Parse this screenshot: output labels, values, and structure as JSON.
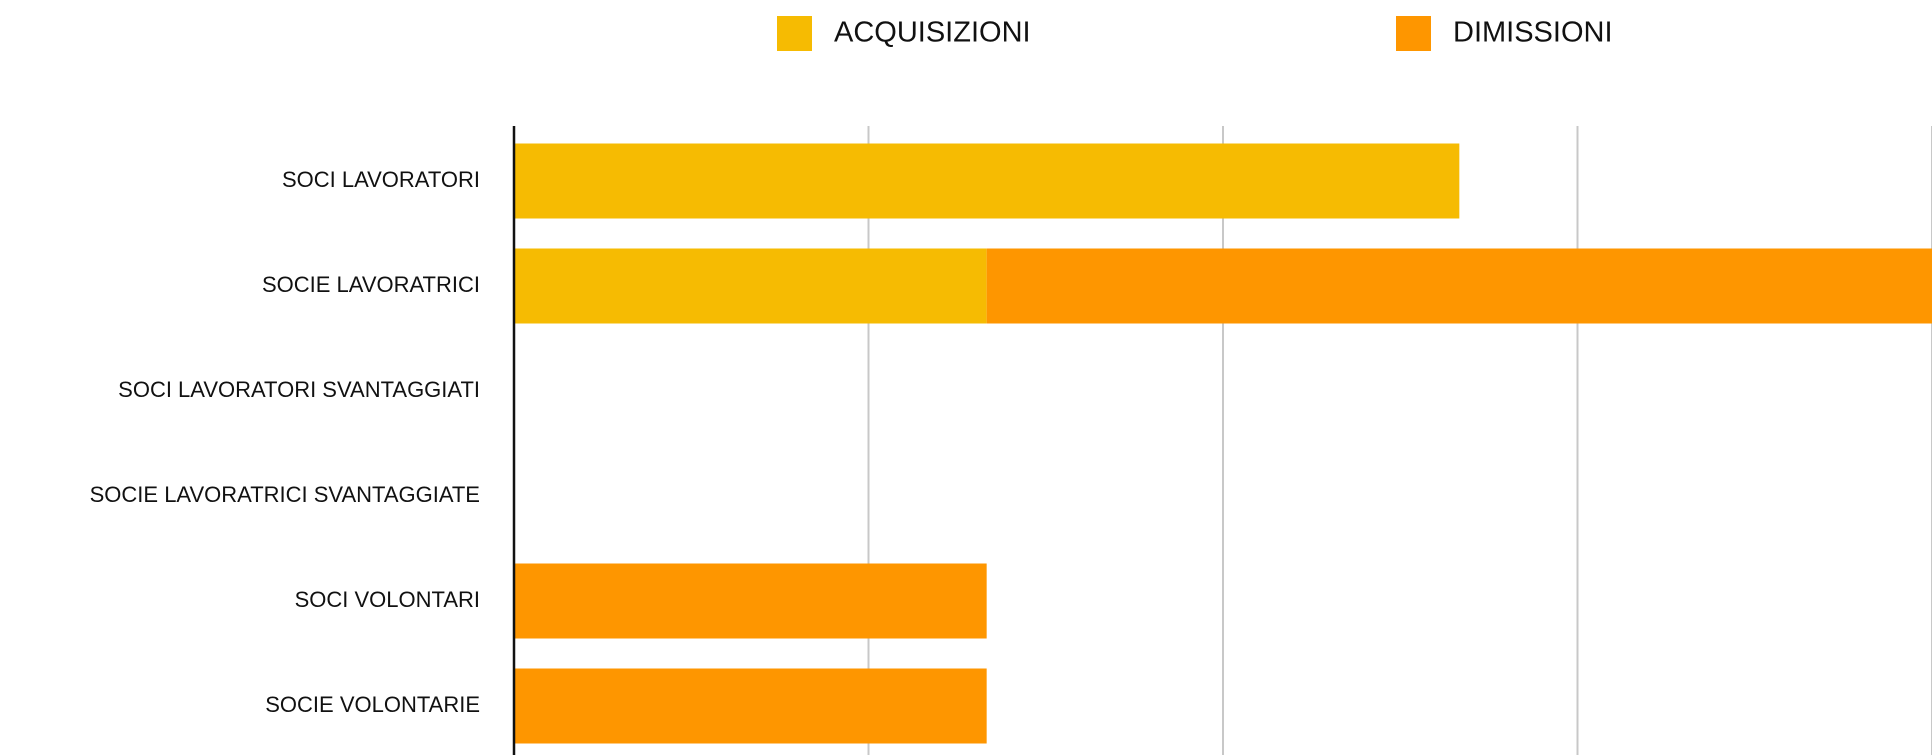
{
  "chart_data": {
    "type": "stacked-barh",
    "categories": [
      "SOCI LAVORATORI",
      "SOCIE LAVORATRICI",
      "SOCI LAVORATORI SVANTAGGIATI",
      "SOCIE LAVORATRICI SVANTAGGIATE",
      "SOCI VOLONTARI",
      "SOCIE VOLONTARIE"
    ],
    "series": [
      {
        "name": "ACQUISIZIONI",
        "color": "#f6bb02",
        "values": [
          8,
          4,
          0,
          0,
          0,
          0
        ]
      },
      {
        "name": "DIMISSIONI",
        "color": "#fe9600",
        "values": [
          0,
          8,
          0,
          0,
          4,
          4
        ]
      }
    ],
    "xlim": [
      0,
      12
    ],
    "xticks": [
      0,
      3,
      6,
      9,
      12
    ],
    "grid": true,
    "legend": "top"
  }
}
